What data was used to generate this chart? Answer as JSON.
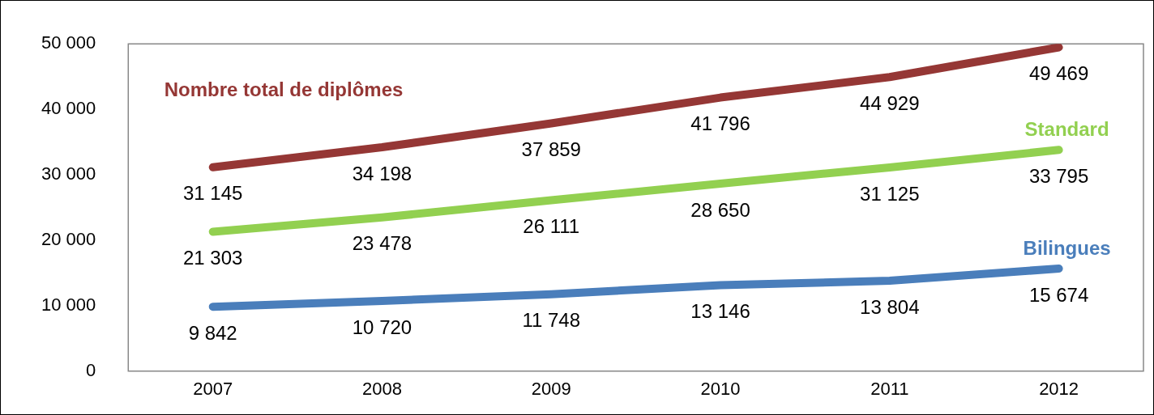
{
  "chart_data": {
    "type": "line",
    "categories": [
      "2007",
      "2008",
      "2009",
      "2010",
      "2011",
      "2012"
    ],
    "series": [
      {
        "name": "Nombre total de diplômes",
        "color": "#953735",
        "values": [
          31145,
          34198,
          37859,
          41796,
          44929,
          49469
        ],
        "value_labels": [
          "31 145",
          "34 198",
          "37 859",
          "41 796",
          "44 929",
          "49 469"
        ]
      },
      {
        "name": "Standard",
        "color": "#92d050",
        "values": [
          21303,
          23478,
          26111,
          28650,
          31125,
          33795
        ],
        "value_labels": [
          "21 303",
          "23 478",
          "26 111",
          "28 650",
          "31 125",
          "33 795"
        ]
      },
      {
        "name": "Bilingues",
        "color": "#4a7ebb",
        "values": [
          9842,
          10720,
          11748,
          13146,
          13804,
          15674
        ],
        "value_labels": [
          "9 842",
          "10 720",
          "11 748",
          "13 146",
          "13 804",
          "15 674"
        ]
      }
    ],
    "ylim": [
      0,
      50000
    ],
    "yticks": [
      {
        "value": 0,
        "label": "0"
      },
      {
        "value": 10000,
        "label": "10 000"
      },
      {
        "value": 20000,
        "label": "20 000"
      },
      {
        "value": 30000,
        "label": "30 000"
      },
      {
        "value": 40000,
        "label": "40 000"
      },
      {
        "value": 50000,
        "label": "50 000"
      }
    ],
    "grid": false,
    "legend": false,
    "marker": "none",
    "line_style": "solid"
  }
}
